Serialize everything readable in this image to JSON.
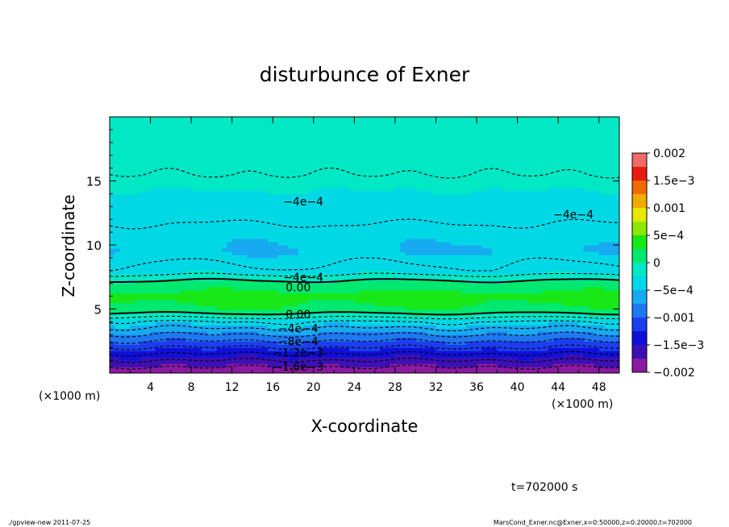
{
  "chart_data": {
    "type": "heatmap",
    "title": "disturbunce of Exner",
    "xlabel": "X-coordinate",
    "ylabel": "Z-coordinate",
    "x_unit": "(×1000 m)",
    "y_unit": "(×1000 m)",
    "xlim": [
      0,
      50
    ],
    "ylim": [
      0,
      20
    ],
    "x_ticks": [
      "4",
      "8",
      "12",
      "16",
      "20",
      "24",
      "28",
      "32",
      "36",
      "40",
      "44",
      "48"
    ],
    "y_ticks": [
      "5",
      "10",
      "15"
    ],
    "colorbar": {
      "range": [
        -0.002,
        0.002
      ],
      "labels": [
        "0.002",
        "1.5e−3",
        "0.001",
        "5e−4",
        "0",
        "−5e−4",
        "−0.001",
        "−1.5e−3",
        "−0.002"
      ]
    },
    "contour_labels": [
      "−4e−4",
      "−4e−4",
      "−4e−4",
      "0.00",
      "0.00",
      "−4e−4",
      "−8e−4",
      "−1.2e−3",
      "−1.6e−3"
    ],
    "profile": {
      "z": [
        0.2,
        1.0,
        2.0,
        3.0,
        4.0,
        5.0,
        6.0,
        7.0,
        8.0,
        9.5,
        11.0,
        13.0,
        15.5,
        18.0,
        19.8
      ],
      "value": [
        -0.0019,
        -0.0016,
        -0.0012,
        -0.0008,
        -0.0004,
        0.0002,
        0.00035,
        0.0001,
        -0.00035,
        -0.0005,
        -0.00045,
        -0.0003,
        -0.0002,
        -0.00015,
        -0.0001
      ]
    }
  },
  "annotations": {
    "time_label": "t=702000 s",
    "footer_left": "./gpview-new   2011-07-25",
    "footer_right": "MarsCond_Exner.nc@Exner,x=0:50000,z=0:20000,t=702000"
  }
}
